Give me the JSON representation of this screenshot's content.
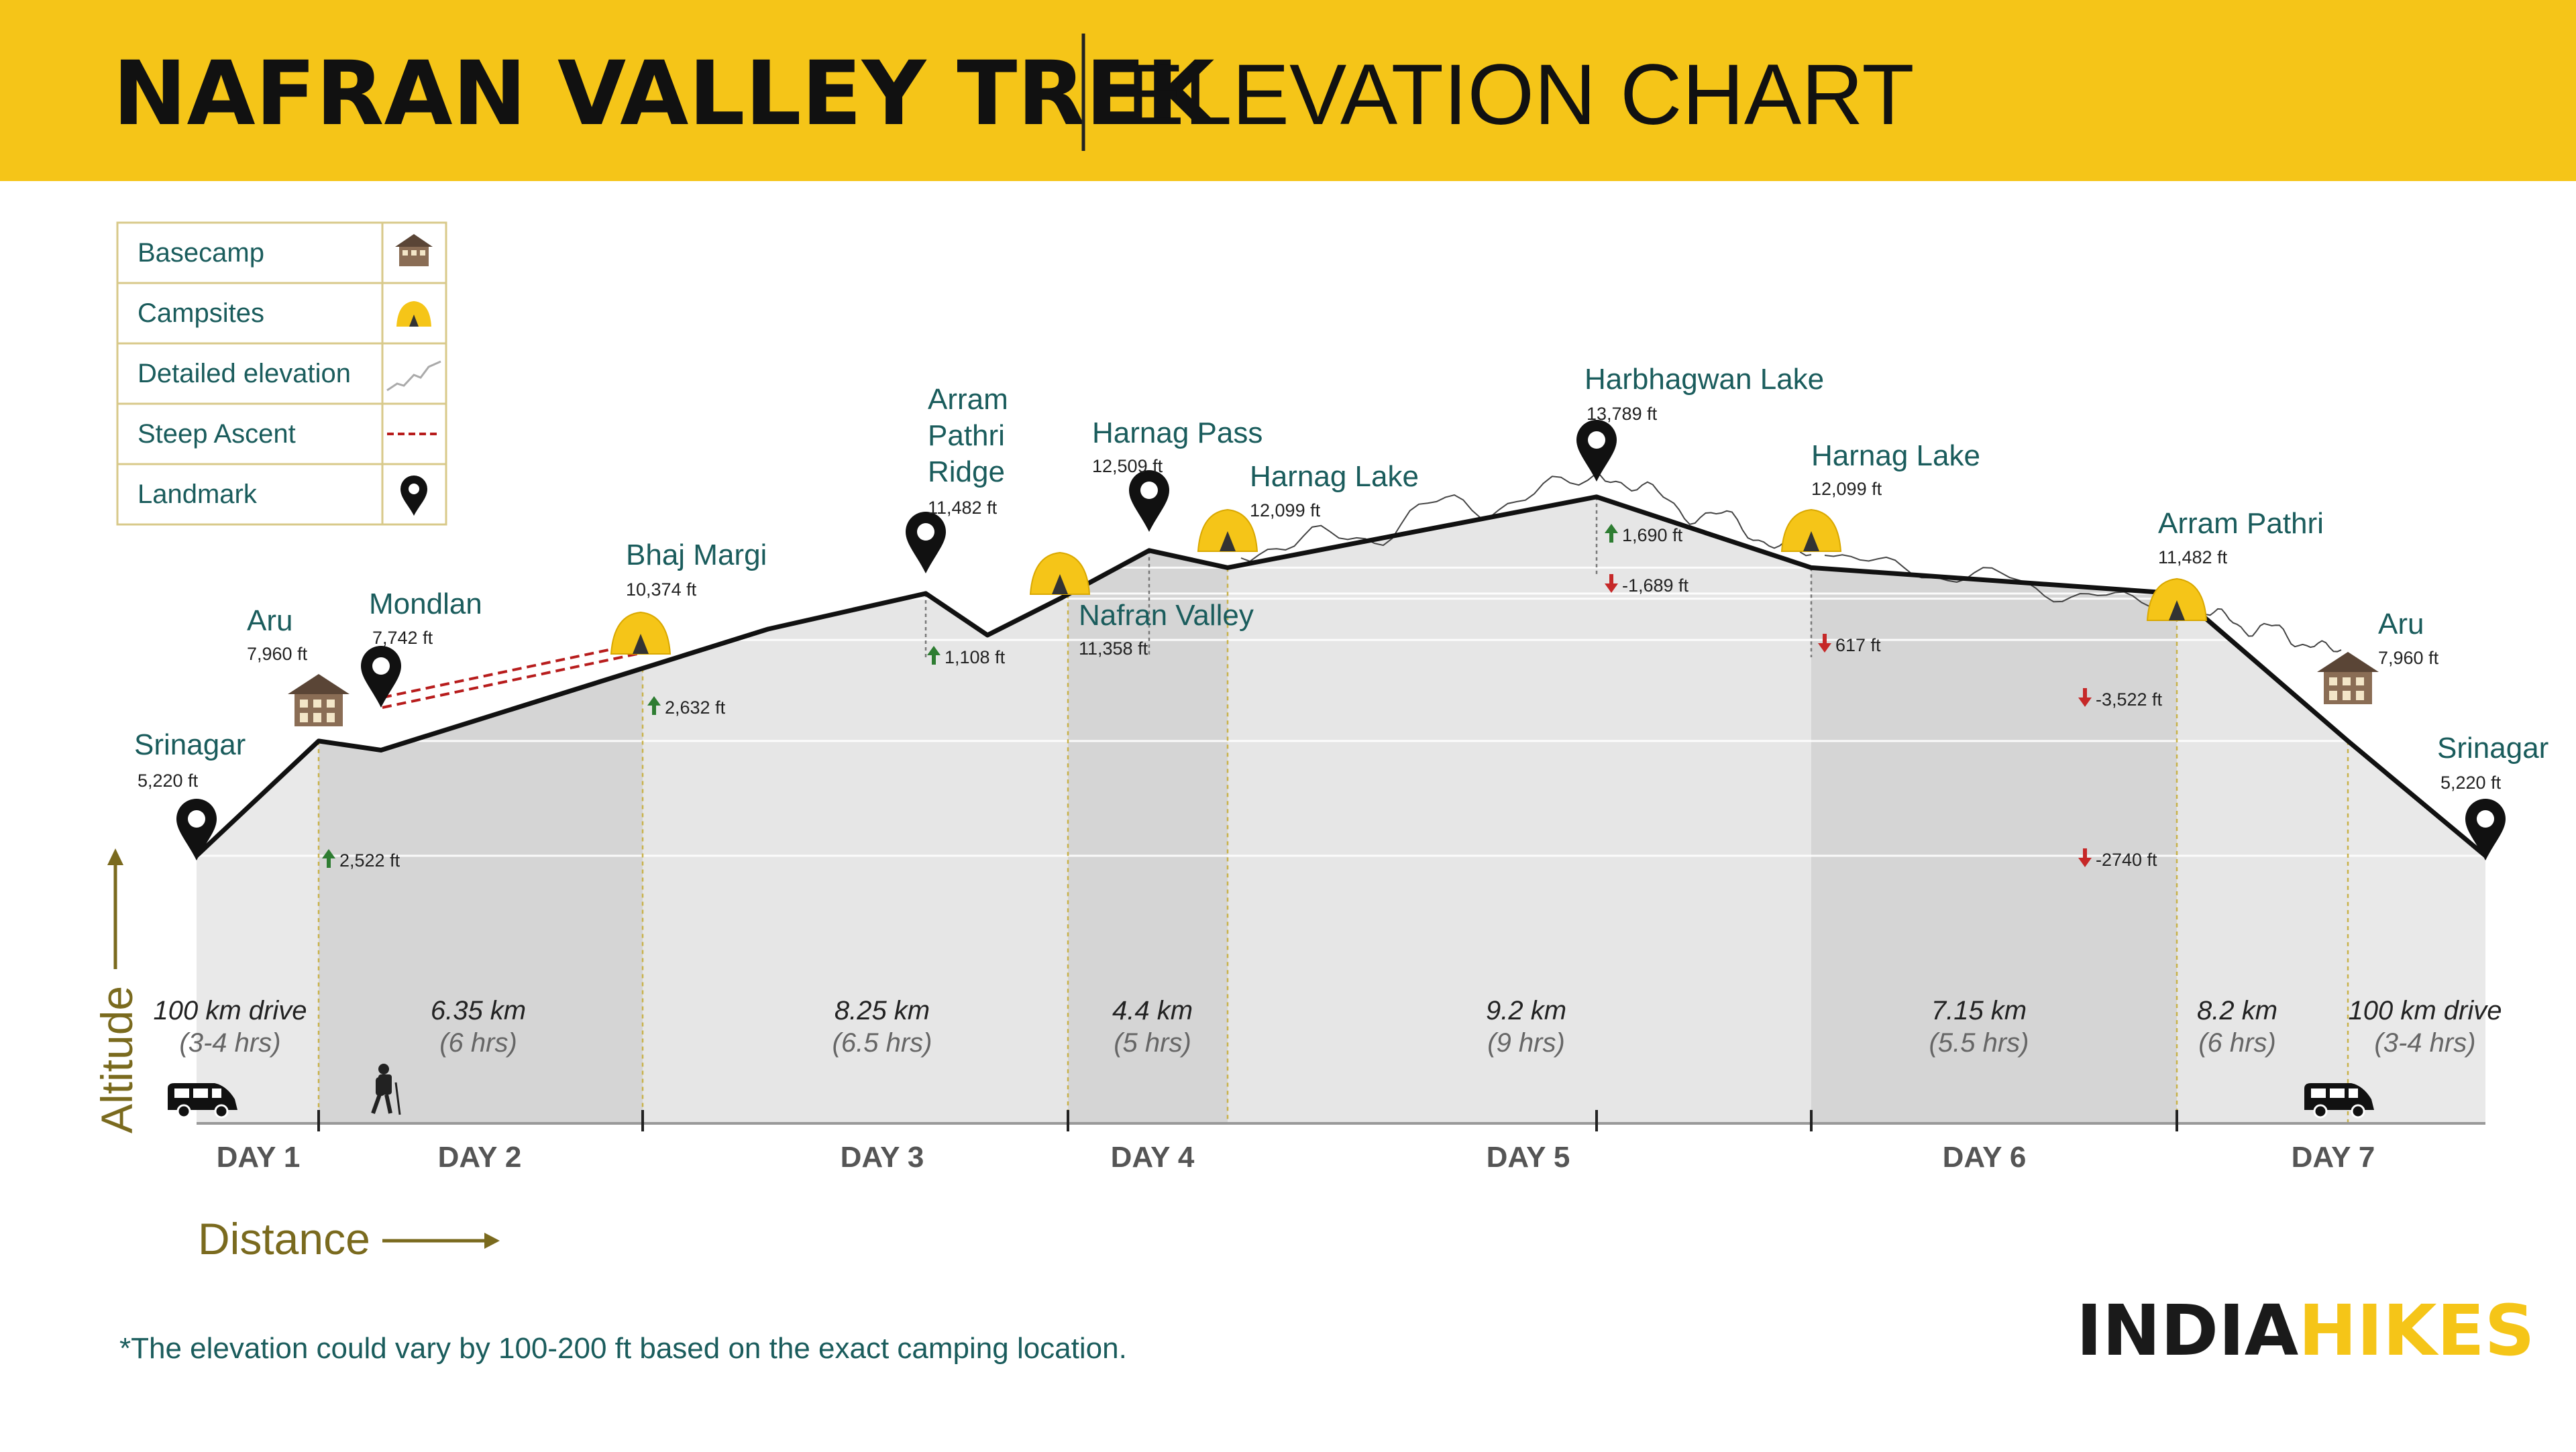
{
  "header": {
    "title": "NAFRAN VALLEY TREK",
    "subtitle": "ELEVATION CHART",
    "bg_color": "#F5C518"
  },
  "legend": [
    {
      "label": "Basecamp",
      "icon": "basecamp-icon"
    },
    {
      "label": "Campsites",
      "icon": "tent-icon"
    },
    {
      "label": "Detailed elevation",
      "icon": "detailed-elevation-icon"
    },
    {
      "label": "Steep Ascent",
      "icon": "steep-ascent-icon"
    },
    {
      "label": "Landmark",
      "icon": "map-pin-icon"
    }
  ],
  "axis": {
    "ylabel": "Altitude",
    "xlabel": "Distance"
  },
  "footnote": "*The elevation could vary by 100-200 ft based on the exact camping location.",
  "brand": {
    "part1": "INDIA",
    "part2": "HIKES",
    "color1": "#1a1a1a",
    "color2": "#F5C518"
  },
  "colors": {
    "label": "#1a5c5c",
    "ascent": "#2e7d32",
    "descent": "#c62828",
    "line": "#111111",
    "drive_band": "#e9e9e9",
    "band_dark": "#d5d5d5",
    "band_light": "#e6e6e6"
  },
  "chart_data": {
    "type": "area",
    "ylabel": "Altitude",
    "xlabel": "Distance",
    "unit": "ft",
    "points": [
      {
        "name": "Srinagar",
        "elevation": 5220,
        "icon": "map-pin-icon",
        "label": "5,220 ft"
      },
      {
        "name": "Aru",
        "elevation": 7960,
        "icon": "basecamp-icon",
        "label": "7,960 ft"
      },
      {
        "name": "Mondlan",
        "elevation": 7742,
        "icon": "map-pin-icon",
        "label": "7,742 ft"
      },
      {
        "name": "Bhaj Margi",
        "elevation": 10374,
        "icon": "tent-icon",
        "label": "10,374 ft"
      },
      {
        "name": "Arram Pathri Ridge",
        "elevation": 11482,
        "icon": "map-pin-icon",
        "label": "11,482 ft"
      },
      {
        "name": "Nafran Valley",
        "elevation": 11358,
        "icon": "tent-icon",
        "label": "11,358 ft"
      },
      {
        "name": "Harnag Pass",
        "elevation": 12509,
        "icon": "map-pin-icon",
        "label": "12,509 ft"
      },
      {
        "name": "Harnag Lake",
        "elevation": 12099,
        "icon": "tent-icon",
        "label": "12,099 ft"
      },
      {
        "name": "Harbhagwan Lake",
        "elevation": 13789,
        "icon": "map-pin-icon",
        "label": "13,789 ft"
      },
      {
        "name": "Harnag Lake",
        "elevation": 12099,
        "icon": "tent-icon",
        "label": "12,099 ft"
      },
      {
        "name": "Arram Pathri",
        "elevation": 11482,
        "icon": "tent-icon",
        "label": "11,482 ft"
      },
      {
        "name": "Aru",
        "elevation": 7960,
        "icon": "basecamp-icon",
        "label": "7,960 ft"
      },
      {
        "name": "Srinagar",
        "elevation": 5220,
        "icon": "map-pin-icon",
        "label": "5,220 ft"
      }
    ],
    "segments": [
      {
        "distance": "100 km drive",
        "duration": "(3-4 hrs)",
        "icon": "van-icon"
      },
      {
        "distance": "6.35 km",
        "duration": "(6 hrs)",
        "icon": "hiker-icon"
      },
      {
        "distance": "8.25 km",
        "duration": "(6.5 hrs)"
      },
      {
        "distance": "4.4 km",
        "duration": "(5 hrs)"
      },
      {
        "distance": "9.2 km",
        "duration": "(9 hrs)"
      },
      {
        "distance": "7.15 km",
        "duration": "(5.5 hrs)"
      },
      {
        "distance": "8.2 km",
        "duration": "(6 hrs)"
      },
      {
        "distance": "100 km drive",
        "duration": "(3-4 hrs)",
        "icon": "van-icon"
      }
    ],
    "days": [
      "DAY 1",
      "DAY 2",
      "DAY 3",
      "DAY 4",
      "DAY 5",
      "DAY 6",
      "DAY 7"
    ],
    "changes": [
      {
        "value": "2,522 ft",
        "dir": "up"
      },
      {
        "value": "2,632 ft",
        "dir": "up"
      },
      {
        "value": "1,108 ft",
        "dir": "up"
      },
      {
        "value": "1,690 ft",
        "dir": "up"
      },
      {
        "value": "-1,689 ft",
        "dir": "down"
      },
      {
        "value": "617 ft",
        "dir": "down"
      },
      {
        "value": "-3,522 ft",
        "dir": "down"
      },
      {
        "value": "-2740 ft",
        "dir": "down"
      }
    ]
  }
}
